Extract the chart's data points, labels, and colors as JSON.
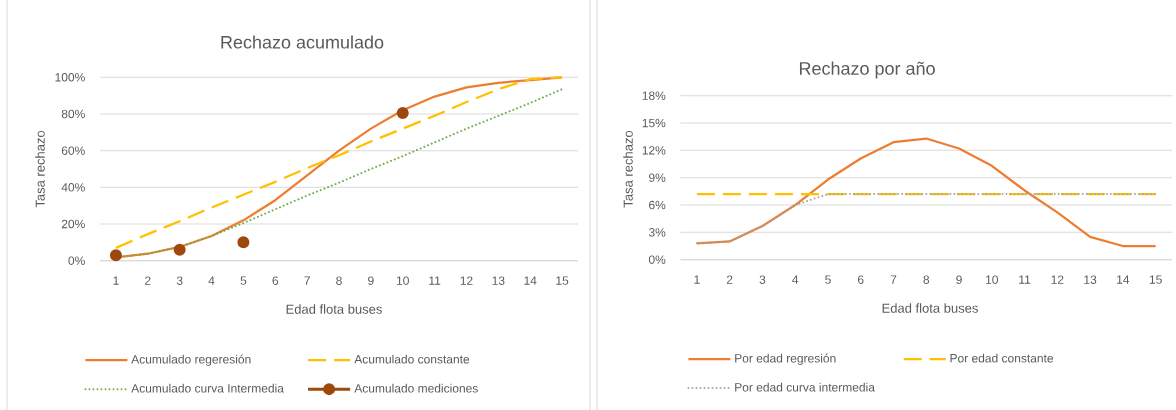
{
  "chart_data": [
    {
      "type": "line",
      "title": "Rechazo acumulado",
      "xlabel": "Edad flota buses",
      "ylabel": "Tasa rechazo",
      "categories": [
        "1",
        "2",
        "3",
        "4",
        "5",
        "6",
        "7",
        "8",
        "9",
        "10",
        "11",
        "12",
        "13",
        "14",
        "15"
      ],
      "series": [
        {
          "name": "Acumulado regeresión",
          "color": "#ed7d31",
          "line_style": "solid",
          "values": [
            1.8,
            3.8,
            7.5,
            13.5,
            22,
            33,
            46.5,
            60,
            72,
            82,
            89.5,
            94.5,
            97,
            98.5,
            100
          ]
        },
        {
          "name": "Acumulado constante",
          "color": "#ffc000",
          "line_style": "dashed",
          "values": [
            7,
            14.5,
            21.5,
            29,
            36,
            43,
            50.5,
            57.5,
            65,
            72,
            79,
            86.5,
            93.5,
            99,
            100
          ]
        },
        {
          "name": "Acumulado curva Intermedia",
          "color": "#70ad47",
          "line_style": "dotted",
          "values": [
            1.8,
            3.8,
            7.5,
            13.5,
            20.5,
            28,
            35.5,
            42.5,
            50,
            57,
            64.5,
            72,
            79,
            86,
            93.5
          ]
        },
        {
          "name": "Acumulado mediciones",
          "type": "scatter",
          "color": "#9e480e",
          "line_style": "solid",
          "marker": "circle",
          "values": [
            3,
            null,
            6,
            null,
            10,
            null,
            null,
            null,
            null,
            80.5,
            null,
            null,
            null,
            null,
            null
          ]
        }
      ],
      "ylim": [
        0,
        100
      ],
      "yticks": [
        {
          "value": 0,
          "label": "0%"
        },
        {
          "value": 20,
          "label": "20%"
        },
        {
          "value": 40,
          "label": "40%"
        },
        {
          "value": 60,
          "label": "60%"
        },
        {
          "value": 80,
          "label": "80%"
        },
        {
          "value": 100,
          "label": "100%"
        }
      ],
      "grid": "y",
      "legend": "bottom"
    },
    {
      "type": "line",
      "title": "Rechazo por año",
      "xlabel": "Edad flota buses",
      "ylabel": "Tasa rechazo",
      "categories": [
        "1",
        "2",
        "3",
        "4",
        "5",
        "6",
        "7",
        "8",
        "9",
        "10",
        "11",
        "12",
        "13",
        "14",
        "15"
      ],
      "series": [
        {
          "name": "Por edad regresión",
          "color": "#ed7d31",
          "line_style": "solid",
          "values": [
            1.8,
            2.0,
            3.7,
            6.0,
            8.8,
            11.1,
            12.9,
            13.3,
            12.2,
            10.3,
            7.6,
            5.2,
            2.5,
            1.5,
            1.5
          ]
        },
        {
          "name": "Por edad constante",
          "color": "#ffc000",
          "line_style": "dashed",
          "values": [
            7.2,
            7.2,
            7.2,
            7.2,
            7.2,
            7.2,
            7.2,
            7.2,
            7.2,
            7.2,
            7.2,
            7.2,
            7.2,
            7.2,
            7.2
          ]
        },
        {
          "name": "Por edad curva intermedia",
          "color": "#a5a5a5",
          "line_style": "dotted",
          "values": [
            1.8,
            2.0,
            3.7,
            6.0,
            7.2,
            7.2,
            7.2,
            7.2,
            7.2,
            7.2,
            7.2,
            7.2,
            7.2,
            7.2,
            7.2
          ]
        }
      ],
      "ylim": [
        0,
        18
      ],
      "yticks": [
        {
          "value": 0,
          "label": "0%"
        },
        {
          "value": 3,
          "label": "3%"
        },
        {
          "value": 6,
          "label": "6%"
        },
        {
          "value": 9,
          "label": "9%"
        },
        {
          "value": 12,
          "label": "12%"
        },
        {
          "value": 15,
          "label": "15%"
        },
        {
          "value": 18,
          "label": "18%"
        }
      ],
      "grid": "y",
      "legend": "bottom"
    }
  ]
}
